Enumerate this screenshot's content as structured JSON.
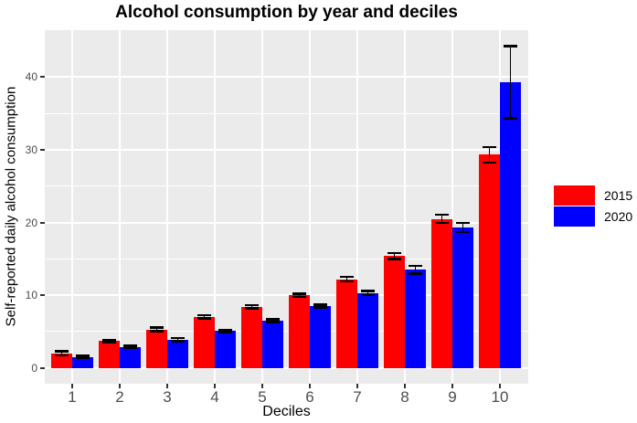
{
  "chart_data": {
    "type": "bar",
    "bar_mode": "grouped",
    "title": "Alcohol consumption by year and deciles",
    "xlabel": "Deciles",
    "ylabel": "Self-reported daily alcohol consumption",
    "categories": [
      "1",
      "2",
      "3",
      "4",
      "5",
      "6",
      "7",
      "8",
      "9",
      "10"
    ],
    "series": [
      {
        "name": "2015",
        "color": "#FF0000",
        "values": [
          2.0,
          3.7,
          5.3,
          7.0,
          8.4,
          10.0,
          12.2,
          15.4,
          20.5,
          29.3
        ],
        "errors": [
          0.3,
          0.2,
          0.3,
          0.25,
          0.25,
          0.25,
          0.35,
          0.45,
          0.6,
          1.1
        ]
      },
      {
        "name": "2020",
        "color": "#0000FF",
        "values": [
          1.5,
          2.9,
          3.9,
          5.1,
          6.5,
          8.5,
          10.3,
          13.5,
          19.3,
          39.3
        ],
        "errors": [
          0.2,
          0.15,
          0.25,
          0.2,
          0.2,
          0.2,
          0.3,
          0.55,
          0.65,
          5.0
        ]
      }
    ],
    "error_bars": true,
    "y_ticks": [
      0,
      10,
      20,
      30,
      40
    ],
    "y_minor_ticks": [
      5,
      15,
      25,
      35
    ],
    "ylim": [
      -2,
      46.5
    ],
    "grid": "white major and minor horizontal lines, white vertical lines at category centers, on gray panel",
    "legend_position": "right",
    "legend_entries": [
      "2015",
      "2020"
    ]
  },
  "style": {
    "panel_bg": "#EBEBEB",
    "grid_color": "#FFFFFF",
    "axis_text_color": "#4D4D4D",
    "tick_mark_color": "#333333",
    "text_color": "#000000",
    "series_colors": {
      "2015": "#FF0000",
      "2020": "#0000FF"
    }
  }
}
